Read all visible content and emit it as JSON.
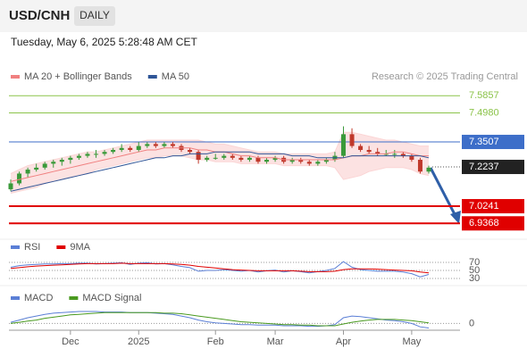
{
  "header": {
    "symbol": "USD/CNH",
    "interval": "DAILY",
    "timestamp": "Tuesday, May 6, 2025 5:28:48 AM CET",
    "credit": "Research © 2025 Trading Central"
  },
  "chart_data": [
    {
      "type": "candlestick",
      "up_color": "#3a9a3a",
      "down_color": "#c0392b",
      "ylim": [
        6.87,
        7.75
      ],
      "xticks": [
        {
          "value": 7,
          "label": "Dec"
        },
        {
          "value": 15,
          "label": "2025"
        },
        {
          "value": 24,
          "label": "Feb"
        },
        {
          "value": 31,
          "label": "Mar"
        },
        {
          "value": 39,
          "label": "Apr"
        },
        {
          "value": 47,
          "label": "May"
        }
      ],
      "ohlc": [
        [
          7.11,
          7.16,
          7.1,
          7.14
        ],
        [
          7.14,
          7.2,
          7.13,
          7.19
        ],
        [
          7.19,
          7.22,
          7.17,
          7.21
        ],
        [
          7.21,
          7.24,
          7.2,
          7.22
        ],
        [
          7.22,
          7.25,
          7.21,
          7.24
        ],
        [
          7.24,
          7.26,
          7.22,
          7.25
        ],
        [
          7.25,
          7.27,
          7.23,
          7.26
        ],
        [
          7.26,
          7.28,
          7.24,
          7.27
        ],
        [
          7.27,
          7.29,
          7.26,
          7.28
        ],
        [
          7.28,
          7.3,
          7.27,
          7.29
        ],
        [
          7.29,
          7.31,
          7.27,
          7.29
        ],
        [
          7.29,
          7.31,
          7.28,
          7.3
        ],
        [
          7.3,
          7.32,
          7.29,
          7.31
        ],
        [
          7.31,
          7.34,
          7.3,
          7.32
        ],
        [
          7.32,
          7.33,
          7.3,
          7.31
        ],
        [
          7.31,
          7.35,
          7.3,
          7.33
        ],
        [
          7.33,
          7.35,
          7.32,
          7.34
        ],
        [
          7.34,
          7.35,
          7.32,
          7.33
        ],
        [
          7.33,
          7.35,
          7.32,
          7.34
        ],
        [
          7.34,
          7.35,
          7.32,
          7.33
        ],
        [
          7.33,
          7.34,
          7.3,
          7.31
        ],
        [
          7.31,
          7.32,
          7.29,
          7.3
        ],
        [
          7.3,
          7.31,
          7.24,
          7.26
        ],
        [
          7.26,
          7.28,
          7.25,
          7.27
        ],
        [
          7.27,
          7.29,
          7.26,
          7.27
        ],
        [
          7.27,
          7.29,
          7.26,
          7.28
        ],
        [
          7.28,
          7.29,
          7.26,
          7.27
        ],
        [
          7.27,
          7.28,
          7.25,
          7.26
        ],
        [
          7.26,
          7.28,
          7.25,
          7.27
        ],
        [
          7.27,
          7.28,
          7.24,
          7.25
        ],
        [
          7.25,
          7.27,
          7.24,
          7.26
        ],
        [
          7.26,
          7.28,
          7.25,
          7.27
        ],
        [
          7.27,
          7.28,
          7.24,
          7.25
        ],
        [
          7.25,
          7.27,
          7.24,
          7.26
        ],
        [
          7.26,
          7.27,
          7.24,
          7.25
        ],
        [
          7.25,
          7.26,
          7.23,
          7.24
        ],
        [
          7.24,
          7.26,
          7.23,
          7.25
        ],
        [
          7.25,
          7.27,
          7.24,
          7.26
        ],
        [
          7.26,
          7.3,
          7.25,
          7.28
        ],
        [
          7.28,
          7.43,
          7.27,
          7.39
        ],
        [
          7.39,
          7.42,
          7.32,
          7.33
        ],
        [
          7.33,
          7.34,
          7.3,
          7.31
        ],
        [
          7.31,
          7.33,
          7.29,
          7.3
        ],
        [
          7.3,
          7.32,
          7.28,
          7.29
        ],
        [
          7.29,
          7.31,
          7.28,
          7.29
        ],
        [
          7.29,
          7.31,
          7.27,
          7.29
        ],
        [
          7.29,
          7.3,
          7.27,
          7.28
        ],
        [
          7.28,
          7.29,
          7.25,
          7.26
        ],
        [
          7.26,
          7.27,
          7.19,
          7.2
        ],
        [
          7.2,
          7.23,
          7.19,
          7.22
        ]
      ],
      "series": [
        {
          "name": "MA 20 + Bollinger Bands",
          "color": "#f08080",
          "values": [
            7.15,
            7.16,
            7.17,
            7.18,
            7.19,
            7.2,
            7.21,
            7.22,
            7.23,
            7.24,
            7.25,
            7.26,
            7.27,
            7.28,
            7.29,
            7.3,
            7.31,
            7.31,
            7.32,
            7.32,
            7.32,
            7.32,
            7.31,
            7.31,
            7.3,
            7.3,
            7.29,
            7.28,
            7.28,
            7.27,
            7.27,
            7.27,
            7.26,
            7.26,
            7.26,
            7.26,
            7.26,
            7.26,
            7.26,
            7.27,
            7.28,
            7.28,
            7.29,
            7.29,
            7.29,
            7.3,
            7.3,
            7.29,
            7.28,
            7.28
          ]
        },
        {
          "name": "MA 50",
          "color": "#2f5597",
          "values": [
            7.1,
            7.11,
            7.12,
            7.13,
            7.14,
            7.15,
            7.16,
            7.17,
            7.18,
            7.19,
            7.2,
            7.21,
            7.22,
            7.23,
            7.24,
            7.25,
            7.26,
            7.27,
            7.27,
            7.28,
            7.28,
            7.29,
            7.29,
            7.29,
            7.3,
            7.3,
            7.3,
            7.3,
            7.3,
            7.29,
            7.29,
            7.29,
            7.29,
            7.28,
            7.28,
            7.28,
            7.27,
            7.27,
            7.27,
            7.27,
            7.28,
            7.28,
            7.28,
            7.28,
            7.28,
            7.28,
            7.28,
            7.28,
            7.28,
            7.27
          ]
        }
      ],
      "bands": {
        "color": "#fbd5d5",
        "upper": [
          7.19,
          7.21,
          7.23,
          7.24,
          7.25,
          7.26,
          7.27,
          7.28,
          7.29,
          7.3,
          7.3,
          7.31,
          7.32,
          7.33,
          7.34,
          7.35,
          7.36,
          7.36,
          7.36,
          7.36,
          7.36,
          7.36,
          7.36,
          7.35,
          7.34,
          7.34,
          7.33,
          7.32,
          7.31,
          7.3,
          7.3,
          7.3,
          7.29,
          7.29,
          7.29,
          7.29,
          7.29,
          7.29,
          7.3,
          7.4,
          7.4,
          7.39,
          7.38,
          7.37,
          7.36,
          7.36,
          7.35,
          7.34,
          7.33,
          7.33
        ],
        "lower": [
          7.09,
          7.1,
          7.11,
          7.12,
          7.14,
          7.15,
          7.16,
          7.17,
          7.18,
          7.19,
          7.21,
          7.22,
          7.23,
          7.24,
          7.25,
          7.26,
          7.27,
          7.27,
          7.28,
          7.28,
          7.28,
          7.27,
          7.26,
          7.26,
          7.25,
          7.25,
          7.25,
          7.24,
          7.24,
          7.24,
          7.24,
          7.24,
          7.23,
          7.23,
          7.23,
          7.23,
          7.23,
          7.23,
          7.22,
          7.16,
          7.17,
          7.18,
          7.2,
          7.21,
          7.22,
          7.22,
          7.22,
          7.21,
          7.19,
          7.18
        ]
      },
      "levels": [
        {
          "value": 7.5857,
          "label": "7.5857",
          "color": "#8bc34a",
          "kind": "line"
        },
        {
          "value": 7.498,
          "label": "7.4980",
          "color": "#8bc34a",
          "kind": "line"
        },
        {
          "value": 7.3507,
          "label": "7.3507",
          "color": "#3d6ec9",
          "kind": "box"
        },
        {
          "value": 7.2237,
          "label": "7.2237",
          "color": "#222222",
          "kind": "marker"
        },
        {
          "value": 7.0241,
          "label": "7.0241",
          "color": "#e00000",
          "kind": "box"
        },
        {
          "value": 6.9368,
          "label": "6.9368",
          "color": "#e00000",
          "kind": "box"
        }
      ]
    },
    {
      "type": "line",
      "ylim": [
        20,
        80
      ],
      "yticks": [
        30,
        50,
        70
      ],
      "series": [
        {
          "name": "RSI",
          "color": "#5b7fd6",
          "values": [
            58,
            62,
            64,
            65,
            66,
            66,
            67,
            67,
            68,
            68,
            66,
            67,
            68,
            69,
            65,
            68,
            69,
            66,
            67,
            64,
            60,
            57,
            48,
            50,
            50,
            52,
            50,
            48,
            50,
            46,
            49,
            51,
            46,
            49,
            47,
            44,
            47,
            50,
            55,
            72,
            58,
            52,
            50,
            48,
            48,
            48,
            46,
            42,
            34,
            40
          ]
        },
        {
          "name": "9MA",
          "color": "#e00000",
          "values": [
            55,
            57,
            59,
            61,
            62,
            63,
            64,
            65,
            66,
            67,
            67,
            67,
            67,
            68,
            67,
            67,
            67,
            67,
            67,
            66,
            65,
            63,
            60,
            58,
            56,
            54,
            52,
            51,
            50,
            49,
            49,
            49,
            49,
            49,
            48,
            47,
            47,
            47,
            48,
            52,
            54,
            54,
            54,
            53,
            52,
            51,
            50,
            49,
            46,
            44
          ]
        }
      ]
    },
    {
      "type": "line",
      "ylim": [
        -0.015,
        0.035
      ],
      "yticks": [
        0
      ],
      "series": [
        {
          "name": "MACD",
          "color": "#5b7fd6",
          "values": [
            0.002,
            0.006,
            0.01,
            0.013,
            0.016,
            0.018,
            0.019,
            0.02,
            0.021,
            0.021,
            0.021,
            0.02,
            0.02,
            0.02,
            0.019,
            0.019,
            0.019,
            0.018,
            0.017,
            0.016,
            0.013,
            0.01,
            0.006,
            0.003,
            0.001,
            0.0,
            -0.001,
            -0.002,
            -0.002,
            -0.003,
            -0.003,
            -0.003,
            -0.004,
            -0.004,
            -0.004,
            -0.005,
            -0.005,
            -0.004,
            -0.002,
            0.01,
            0.013,
            0.012,
            0.01,
            0.008,
            0.006,
            0.005,
            0.003,
            0.0,
            -0.006,
            -0.008
          ]
        },
        {
          "name": "MACD Signal",
          "color": "#4a9a20",
          "values": [
            0.0,
            0.002,
            0.004,
            0.006,
            0.009,
            0.011,
            0.013,
            0.015,
            0.016,
            0.017,
            0.018,
            0.019,
            0.019,
            0.019,
            0.019,
            0.019,
            0.019,
            0.019,
            0.018,
            0.018,
            0.017,
            0.015,
            0.013,
            0.011,
            0.009,
            0.007,
            0.005,
            0.003,
            0.002,
            0.001,
            0.0,
            -0.001,
            -0.002,
            -0.002,
            -0.003,
            -0.003,
            -0.004,
            -0.004,
            -0.004,
            -0.001,
            0.002,
            0.004,
            0.006,
            0.007,
            0.007,
            0.007,
            0.006,
            0.005,
            0.003,
            0.001
          ]
        }
      ]
    }
  ]
}
